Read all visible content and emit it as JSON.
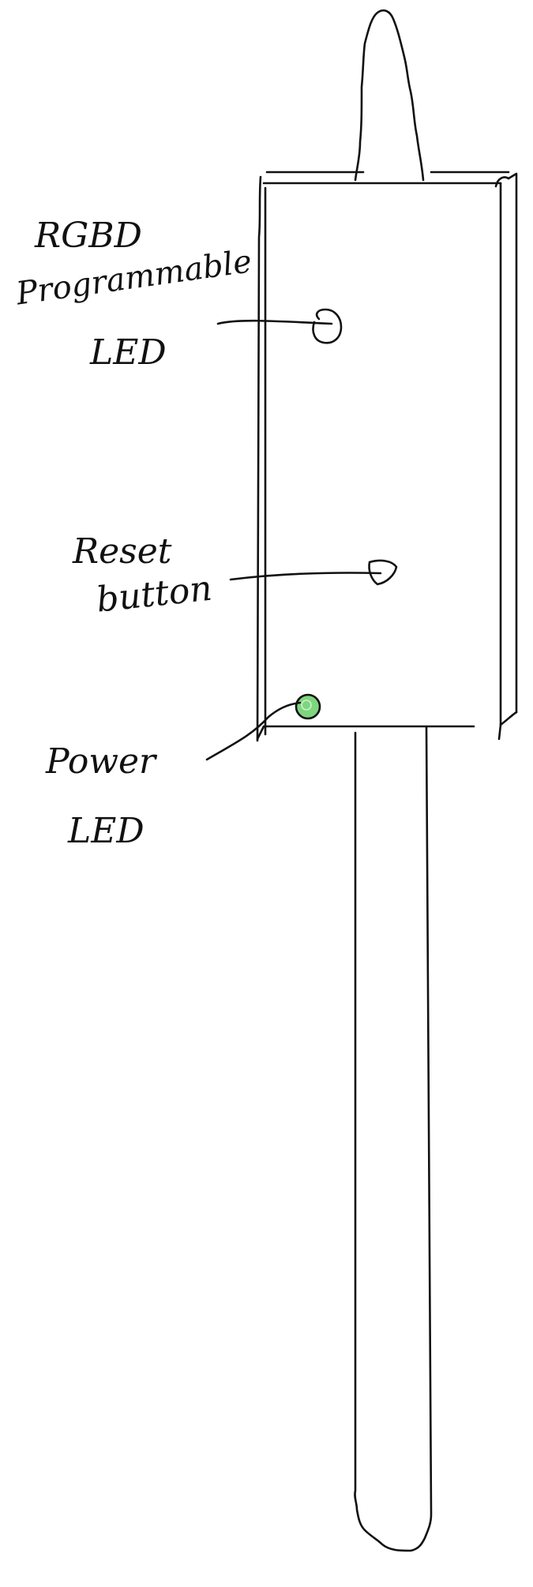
{
  "labels": {
    "rgb_led_line1": "RGBD",
    "rgb_led_line2": "Programmable",
    "rgb_led_line3": "LED",
    "reset_line1": "Reset",
    "reset_line2": "button",
    "power_line1": "Power",
    "power_line2": "LED"
  },
  "colors": {
    "ink": "#111111",
    "power_led_fill": "#7ed67e",
    "power_led_highlight": "#cfeecf"
  }
}
